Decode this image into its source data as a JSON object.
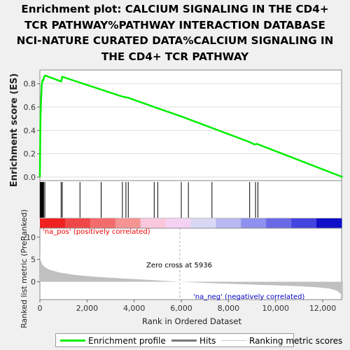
{
  "chart_data": {
    "type": "line",
    "title_lines": [
      "Enrichment plot: CALCIUM SIGNALING IN THE CD4+",
      "TCR PATHWAY%PATHWAY INTERACTION DATABASE",
      "NCI-NATURE CURATED DATA%CALCIUM SIGNALING IN",
      "THE CD4+ TCR PATHWAY"
    ],
    "ylabel_top": "Enrichment score (ES)",
    "ylabel_bottom": "Ranked list metric (PreRanked)",
    "xlabel": "Rank in Ordered Dataset",
    "xlim": [
      0,
      12800
    ],
    "x_ticks": [
      0,
      2000,
      4000,
      6000,
      8000,
      10000,
      12000
    ],
    "x_tick_labels": [
      "0",
      "2,000",
      "4,000",
      "6,000",
      "8,000",
      "10,000",
      "12,000"
    ],
    "es_ylim": [
      0,
      0.9
    ],
    "es_ticks": [
      0.0,
      0.2,
      0.4,
      0.6,
      0.8
    ],
    "es_tick_labels": [
      "0.0",
      "0.2",
      "0.4",
      "0.6",
      "0.8"
    ],
    "metric_ylim": [
      -4,
      12
    ],
    "metric_ticks": [
      10,
      5,
      0
    ],
    "metric_tick_labels": [
      "10",
      "5",
      "0"
    ],
    "enrichment_profile": {
      "x": [
        0,
        20,
        40,
        60,
        80,
        110,
        140,
        180,
        230,
        900,
        950,
        1700,
        2600,
        3500,
        3750,
        5000,
        6000,
        8900,
        9100,
        9200,
        12850
      ],
      "y": [
        0.0,
        0.45,
        0.6,
        0.7,
        0.79,
        0.83,
        0.83,
        0.86,
        0.87,
        0.82,
        0.86,
        0.81,
        0.75,
        0.69,
        0.68,
        0.59,
        0.52,
        0.3,
        0.28,
        0.285,
        0.0
      ]
    },
    "hits": [
      20,
      40,
      60,
      75,
      90,
      110,
      130,
      160,
      210,
      900,
      950,
      1700,
      2600,
      3500,
      3650,
      3750,
      4850,
      5000,
      6000,
      6300,
      7300,
      8900,
      9150,
      9250
    ],
    "metric_profile": {
      "x": [
        0,
        30,
        100,
        200,
        400,
        800,
        1500,
        2500,
        3500,
        4500,
        5936,
        7000,
        8000,
        9000,
        10000,
        11000,
        11800,
        12300,
        12600,
        12750,
        12850
      ],
      "y": [
        6.5,
        4.8,
        3.9,
        3.3,
        2.7,
        2.1,
        1.5,
        1.05,
        0.75,
        0.45,
        0.0,
        -0.25,
        -0.45,
        -0.62,
        -0.8,
        -1.0,
        -1.25,
        -1.55,
        -2.0,
        -2.6,
        -4.0
      ]
    },
    "zero_cross_text": "Zero cross at 5936",
    "zero_cross_x": 5936,
    "na_pos_label": "'na_pos' (positively correlated)",
    "na_neg_label": "'na_neg' (negatively correlated)",
    "legend": {
      "entries": [
        "Enrichment profile",
        "Hits",
        "Ranking metric scores"
      ],
      "placement": "bottom"
    },
    "colors": {
      "profile": "#00ee00",
      "hits": "#000000",
      "metric_fill": "#c0c0c0",
      "na_pos": "#ee0000",
      "na_neg": "#0000cc",
      "zero_line": "#aaaaaa"
    },
    "heatmap_colors": [
      "#ee2222",
      "#f04848",
      "#f46c6c",
      "#f69494",
      "#fac8dc",
      "#f4d2f4",
      "#d8d8f4",
      "#b8b8f2",
      "#9090ee",
      "#6a6ae6",
      "#4444e0",
      "#1010c8"
    ]
  }
}
